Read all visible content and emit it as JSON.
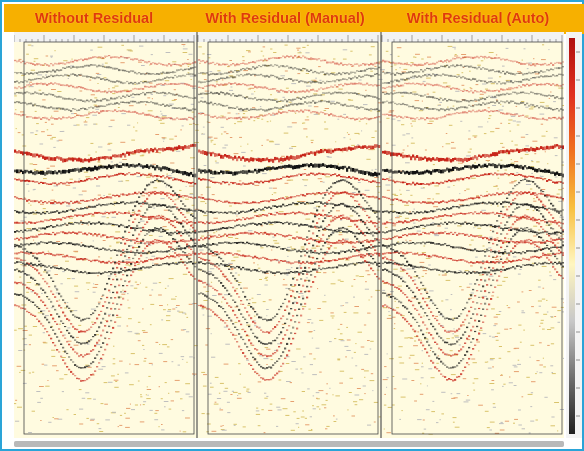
{
  "panels": [
    {
      "title": "Without Residual"
    },
    {
      "title": "With Residual (Manual)"
    },
    {
      "title": "With Residual (Auto)"
    }
  ],
  "colors": {
    "header_bg": "#f7b000",
    "title_text": "#e03a0a",
    "frame_border": "#2aa4d8",
    "seismic_positive": "#c8261a",
    "seismic_negative": "#111111",
    "seismic_background": "#fffbe0"
  },
  "colorbar": {
    "gradient": [
      "#b01010",
      "#e03020",
      "#f07020",
      "#f8c040",
      "#fff6c0",
      "#c8c8c8",
      "#707070",
      "#202020"
    ]
  }
}
